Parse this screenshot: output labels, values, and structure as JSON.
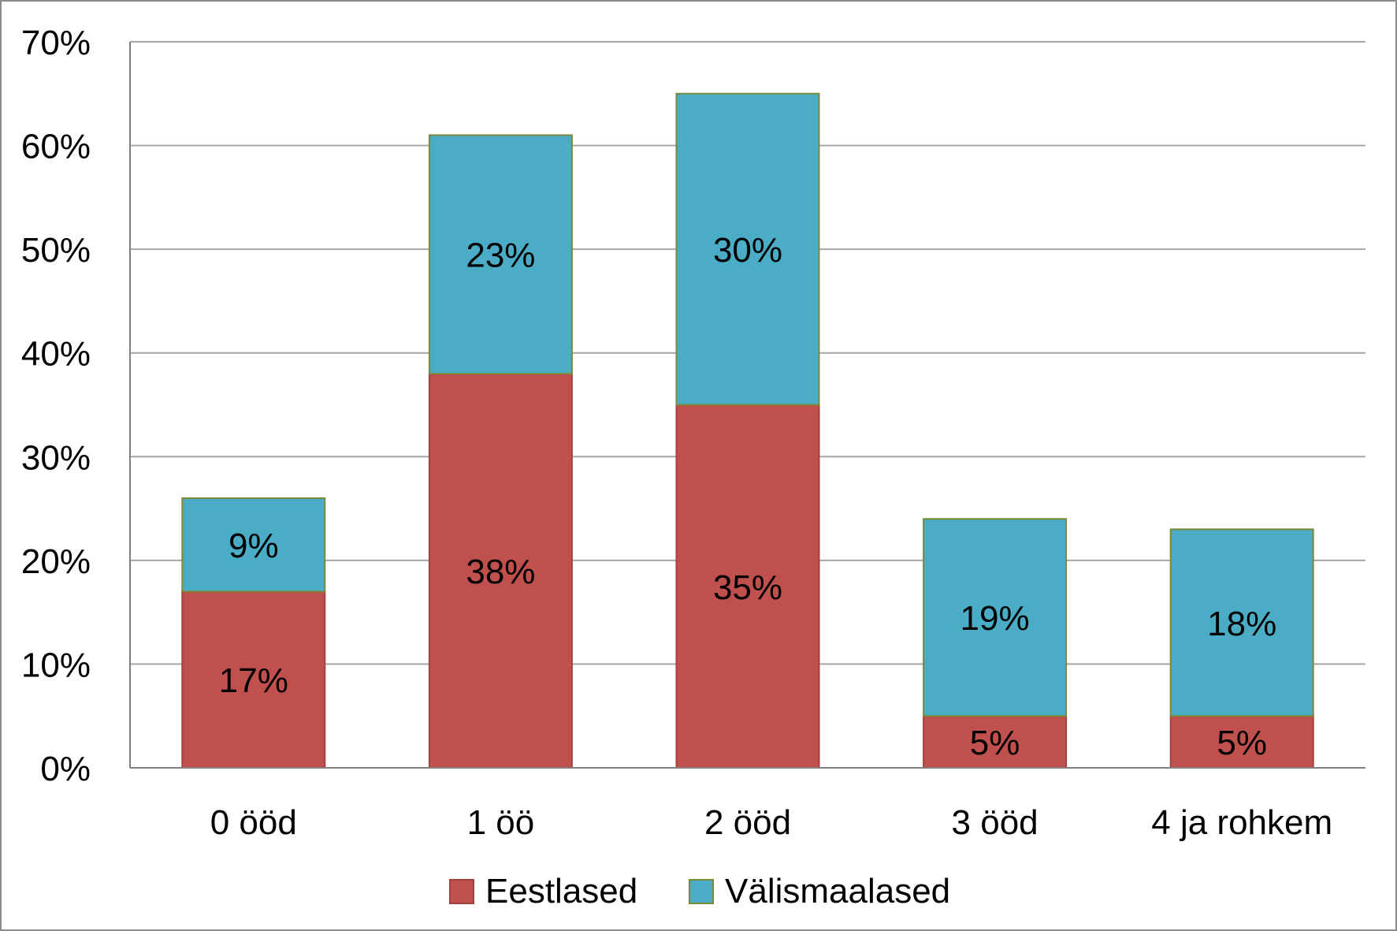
{
  "chart_data": {
    "type": "bar",
    "stacked": true,
    "title": "",
    "xlabel": "",
    "ylabel": "",
    "categories": [
      "0 ööd",
      "1 öö",
      "2 ööd",
      "3 ööd",
      "4 ja rohkem"
    ],
    "series": [
      {
        "name": "Eestlased",
        "values": [
          17,
          38,
          35,
          5,
          5
        ],
        "labels": [
          "17%",
          "38%",
          "35%",
          "5%",
          "5%"
        ],
        "color": "#c0504d"
      },
      {
        "name": "Välismaalased",
        "values": [
          9,
          23,
          30,
          19,
          18
        ],
        "labels": [
          "9%",
          "23%",
          "30%",
          "19%",
          "18%"
        ],
        "color": "#4bacc6"
      }
    ],
    "ylim": [
      0,
      70
    ],
    "yticks": [
      0,
      10,
      20,
      30,
      40,
      50,
      60,
      70
    ],
    "ytick_labels": [
      "0%",
      "10%",
      "20%",
      "30%",
      "40%",
      "50%",
      "60%",
      "70%"
    ],
    "grid": true,
    "legend": "bottom",
    "colors": {
      "gridline": "#a6a6a6",
      "axis": "#808080",
      "frame": "#8c8c8c",
      "bar_outline_top": "#7a8a3a"
    }
  }
}
